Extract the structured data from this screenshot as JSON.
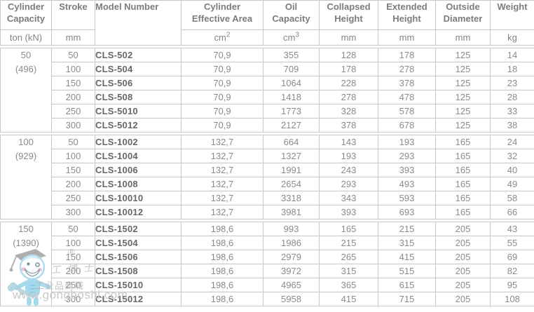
{
  "table": {
    "columns": [
      {
        "label": "Cylinder\nCapacity",
        "unit": "ton (kN)",
        "unit_sup": ""
      },
      {
        "label": "Stroke",
        "unit": "mm",
        "unit_sup": ""
      },
      {
        "label": "Model Number",
        "unit": "",
        "unit_sup": ""
      },
      {
        "label": "Cylinder\nEffective Area",
        "unit": "cm",
        "unit_sup": "2"
      },
      {
        "label": "Oil\nCapacity",
        "unit": "cm",
        "unit_sup": "3"
      },
      {
        "label": "Collapsed\nHeight",
        "unit": "mm",
        "unit_sup": ""
      },
      {
        "label": "Extended\nHeight",
        "unit": "mm",
        "unit_sup": ""
      },
      {
        "label": "Outside\nDiameter",
        "unit": "mm",
        "unit_sup": ""
      },
      {
        "label": "Weight",
        "unit": "kg",
        "unit_sup": ""
      }
    ],
    "groups": [
      {
        "capacity_ton": "50",
        "capacity_kn": "(496)",
        "rows": [
          {
            "stroke": "50",
            "model": "CLS-502",
            "area": "70,9",
            "oil": "355",
            "collapsed": "128",
            "extended": "178",
            "outside": "125",
            "weight": "14"
          },
          {
            "stroke": "100",
            "model": "CLS-504",
            "area": "70,9",
            "oil": "709",
            "collapsed": "178",
            "extended": "278",
            "outside": "125",
            "weight": "18"
          },
          {
            "stroke": "150",
            "model": "CLS-506",
            "area": "70,9",
            "oil": "1064",
            "collapsed": "228",
            "extended": "378",
            "outside": "125",
            "weight": "23"
          },
          {
            "stroke": "200",
            "model": "CLS-508",
            "area": "70,9",
            "oil": "1418",
            "collapsed": "278",
            "extended": "478",
            "outside": "125",
            "weight": "28"
          },
          {
            "stroke": "250",
            "model": "CLS-5010",
            "area": "70,9",
            "oil": "1773",
            "collapsed": "328",
            "extended": "578",
            "outside": "125",
            "weight": "33"
          },
          {
            "stroke": "300",
            "model": "CLS-5012",
            "area": "70,9",
            "oil": "2127",
            "collapsed": "378",
            "extended": "678",
            "outside": "125",
            "weight": "38"
          }
        ]
      },
      {
        "capacity_ton": "100",
        "capacity_kn": "(929)",
        "rows": [
          {
            "stroke": "50",
            "model": "CLS-1002",
            "area": "132,7",
            "oil": "664",
            "collapsed": "143",
            "extended": "193",
            "outside": "165",
            "weight": "24"
          },
          {
            "stroke": "100",
            "model": "CLS-1004",
            "area": "132,7",
            "oil": "1327",
            "collapsed": "193",
            "extended": "293",
            "outside": "165",
            "weight": "32"
          },
          {
            "stroke": "150",
            "model": "CLS-1006",
            "area": "132,7",
            "oil": "1991",
            "collapsed": "243",
            "extended": "393",
            "outside": "165",
            "weight": "40"
          },
          {
            "stroke": "200",
            "model": "CLS-1008",
            "area": "132,7",
            "oil": "2654",
            "collapsed": "293",
            "extended": "493",
            "outside": "165",
            "weight": "49"
          },
          {
            "stroke": "250",
            "model": "CLS-10010",
            "area": "132,7",
            "oil": "3318",
            "collapsed": "343",
            "extended": "593",
            "outside": "165",
            "weight": "58"
          },
          {
            "stroke": "300",
            "model": "CLS-10012",
            "area": "132,7",
            "oil": "3981",
            "collapsed": "393",
            "extended": "693",
            "outside": "165",
            "weight": "66"
          }
        ]
      },
      {
        "capacity_ton": "150",
        "capacity_kn": "(1390)",
        "rows": [
          {
            "stroke": "50",
            "model": "CLS-1502",
            "area": "198,6",
            "oil": "993",
            "collapsed": "165",
            "extended": "215",
            "outside": "205",
            "weight": "43"
          },
          {
            "stroke": "100",
            "model": "CLS-1504",
            "area": "198,6",
            "oil": "1986",
            "collapsed": "215",
            "extended": "315",
            "outside": "205",
            "weight": "55"
          },
          {
            "stroke": "150",
            "model": "CLS-1506",
            "area": "198,6",
            "oil": "2979",
            "collapsed": "265",
            "extended": "415",
            "outside": "205",
            "weight": "69"
          },
          {
            "stroke": "200",
            "model": "CLS-1508",
            "area": "198,6",
            "oil": "3972",
            "collapsed": "315",
            "extended": "515",
            "outside": "205",
            "weight": "82"
          },
          {
            "stroke": "250",
            "model": "CLS-15010",
            "area": "198,6",
            "oil": "4965",
            "collapsed": "365",
            "extended": "615",
            "outside": "205",
            "weight": "95"
          },
          {
            "stroke": "300",
            "model": "CLS-15012",
            "area": "198,6",
            "oil": "5958",
            "collapsed": "415",
            "extended": "715",
            "outside": "205",
            "weight": "108"
          }
        ]
      }
    ]
  },
  "watermark": {
    "registered": "®",
    "brand_cn": "工博士",
    "mall_cn": "工业品商城",
    "url": "www.gongboshi.com"
  },
  "colors": {
    "border": "#c8c8c8",
    "header_text": "#7c7c7c",
    "data_text": "#8b8b8b",
    "model_text": "#676767",
    "mascot_blue": "#8fd0e8",
    "watermark_gray": "#c6c6c6"
  }
}
